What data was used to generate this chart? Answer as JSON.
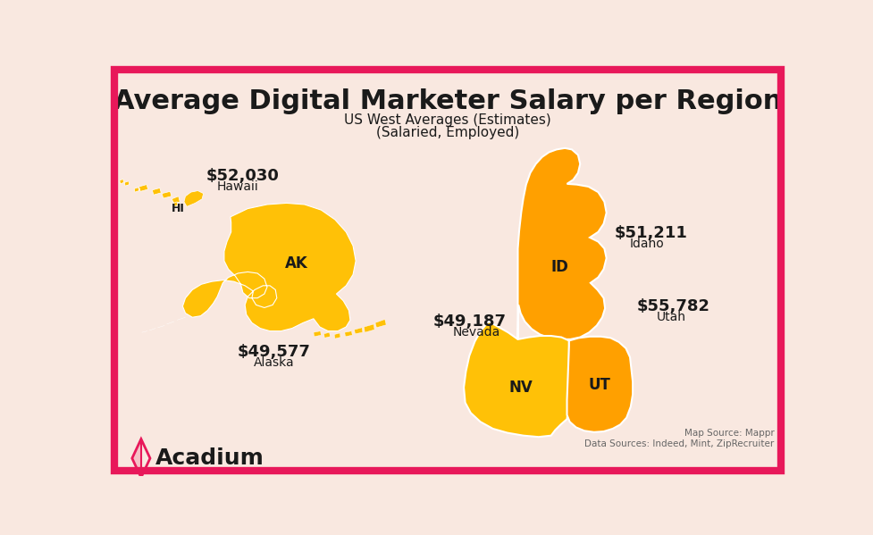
{
  "title": "Average Digital Marketer Salary per Region",
  "subtitle1": "US West Averages (Estimates)",
  "subtitle2": "(Salaried, Employed)",
  "bg_color": "#F9E8E0",
  "border_color": "#E8185A",
  "orange_light": "#FFC107",
  "orange_dark": "#FFA000",
  "text_dark": "#1a1a1a",
  "text_mid": "#333333",
  "brand_color": "#E8185A",
  "brand_name": "Acadium",
  "source_text": "Map Source: Mappr\nData Sources: Indeed, Mint, ZipRecruiter",
  "HI_salary": "$52,030",
  "HI_name": "Hawaii",
  "AK_salary": "$49,577",
  "AK_name": "Alaska",
  "ID_salary": "$51,211",
  "ID_name": "Idaho",
  "NV_salary": "$49,187",
  "NV_name": "Nevada",
  "UT_salary": "$55,782",
  "UT_name": "Utah"
}
